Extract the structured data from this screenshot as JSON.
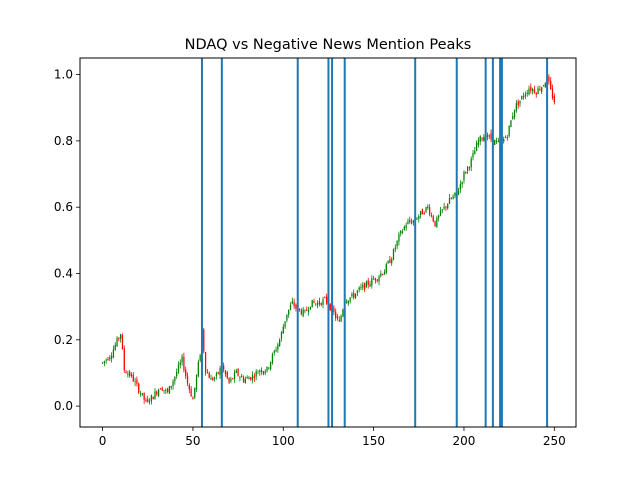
{
  "chart_data": {
    "type": "candlestick",
    "title": "NDAQ vs Negative News Mention Peaks",
    "xlabel": "",
    "ylabel": "",
    "xlim": [
      -12.5,
      262
    ],
    "ylim": [
      -0.063,
      1.05
    ],
    "xticks": [
      0,
      50,
      100,
      150,
      200,
      250
    ],
    "yticks": [
      0.0,
      0.2,
      0.4,
      0.6,
      0.8,
      1.0
    ],
    "xtick_labels": [
      "0",
      "50",
      "100",
      "150",
      "200",
      "250"
    ],
    "ytick_labels": [
      "0.0",
      "0.2",
      "0.4",
      "0.6",
      "0.8",
      "1.0"
    ],
    "grid": false,
    "up_color": "#008000",
    "down_color": "#ff0000",
    "vline_color": "#1f77b4",
    "price_anchors": [
      [
        0,
        0.13
      ],
      [
        5,
        0.16
      ],
      [
        10,
        0.22
      ],
      [
        12,
        0.11
      ],
      [
        16,
        0.09
      ],
      [
        20,
        0.05
      ],
      [
        24,
        0.01
      ],
      [
        28,
        0.03
      ],
      [
        32,
        0.06
      ],
      [
        36,
        0.04
      ],
      [
        40,
        0.09
      ],
      [
        44,
        0.14
      ],
      [
        47,
        0.07
      ],
      [
        50,
        0.02
      ],
      [
        54,
        0.16
      ],
      [
        55,
        0.23
      ],
      [
        57,
        0.11
      ],
      [
        60,
        0.08
      ],
      [
        63,
        0.09
      ],
      [
        66,
        0.12
      ],
      [
        70,
        0.07
      ],
      [
        74,
        0.1
      ],
      [
        78,
        0.08
      ],
      [
        83,
        0.09
      ],
      [
        87,
        0.11
      ],
      [
        91,
        0.11
      ],
      [
        94,
        0.15
      ],
      [
        98,
        0.2
      ],
      [
        102,
        0.28
      ],
      [
        105,
        0.31
      ],
      [
        108,
        0.29
      ],
      [
        112,
        0.28
      ],
      [
        115,
        0.31
      ],
      [
        119,
        0.31
      ],
      [
        123,
        0.32
      ],
      [
        126,
        0.3
      ],
      [
        128,
        0.28
      ],
      [
        131,
        0.25
      ],
      [
        134,
        0.32
      ],
      [
        138,
        0.33
      ],
      [
        142,
        0.35
      ],
      [
        147,
        0.37
      ],
      [
        152,
        0.39
      ],
      [
        156,
        0.41
      ],
      [
        160,
        0.45
      ],
      [
        164,
        0.51
      ],
      [
        168,
        0.55
      ],
      [
        172,
        0.56
      ],
      [
        176,
        0.58
      ],
      [
        180,
        0.6
      ],
      [
        184,
        0.55
      ],
      [
        188,
        0.59
      ],
      [
        192,
        0.62
      ],
      [
        196,
        0.64
      ],
      [
        200,
        0.7
      ],
      [
        204,
        0.74
      ],
      [
        208,
        0.8
      ],
      [
        212,
        0.82
      ],
      [
        216,
        0.8
      ],
      [
        220,
        0.79
      ],
      [
        224,
        0.82
      ],
      [
        228,
        0.9
      ],
      [
        232,
        0.93
      ],
      [
        236,
        0.96
      ],
      [
        240,
        0.95
      ],
      [
        244,
        0.97
      ],
      [
        246,
        0.99
      ],
      [
        248,
        0.95
      ],
      [
        250,
        0.92
      ]
    ],
    "n_candles": 251,
    "vlines": [
      55,
      66,
      108,
      125,
      127,
      134,
      173,
      196,
      212,
      216,
      220,
      221,
      246
    ]
  }
}
